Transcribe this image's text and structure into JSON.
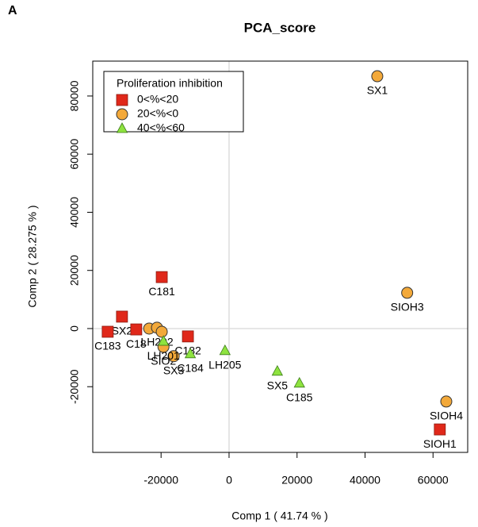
{
  "panel": "A",
  "chart_data": {
    "type": "scatter",
    "title": "PCA_score",
    "x_label": "Comp 1 ( 41.74 % )",
    "y_label": "Comp 2 ( 28.275 % )",
    "xlim": [
      -40100,
      70200
    ],
    "ylim": [
      -42600,
      92000
    ],
    "xticks": [
      -20000,
      0,
      20000,
      40000,
      60000
    ],
    "yticks": [
      -20000,
      0,
      20000,
      40000,
      60000,
      80000
    ],
    "zero_lines": true,
    "legend": {
      "title": "Proliferation inhibition",
      "position": "upper left"
    },
    "series": [
      {
        "name": "0<%<20",
        "color": "#e0281a",
        "marker": "square",
        "x": [
          -19800,
          -31500,
          -35700,
          -27300,
          -12100,
          62000
        ],
        "values": [
          17700,
          4100,
          -1100,
          -300,
          -2700,
          -34700
        ],
        "labels": [
          "C181",
          "SX2",
          "C183",
          "C18",
          "C182",
          "SIOH1"
        ]
      },
      {
        "name": "20<%<0",
        "color": "#f3a93a",
        "marker": "circle",
        "x": [
          43600,
          52400,
          63900,
          -23500,
          -21200,
          -19800,
          -19300,
          -16300
        ],
        "values": [
          86800,
          12300,
          -25100,
          0,
          300,
          -1100,
          -6300,
          -9500
        ],
        "labels": [
          "SX1",
          "SIOH3",
          "SIOH4",
          null,
          "LH202",
          null,
          "SIO2",
          "SX3"
        ]
      },
      {
        "name": "40<%<60",
        "color": "#8ee33f",
        "marker": "triangle",
        "x": [
          -1200,
          14200,
          20700,
          -11400,
          -19300
        ],
        "values": [
          -7600,
          -14700,
          -18800,
          -8700,
          -4400
        ],
        "labels": [
          "LH205",
          "SX5",
          "C185",
          "C184",
          "LH201"
        ]
      }
    ]
  }
}
